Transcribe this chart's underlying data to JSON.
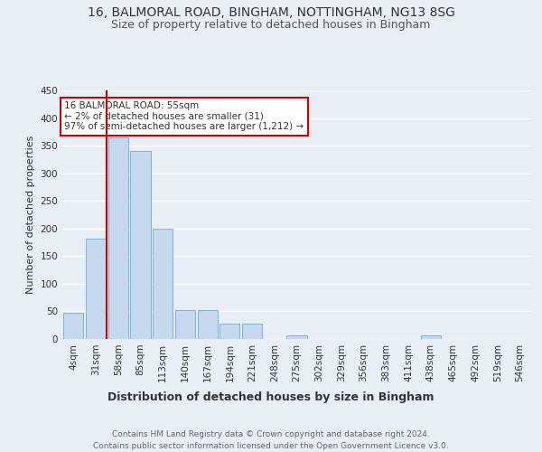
{
  "title1": "16, BALMORAL ROAD, BINGHAM, NOTTINGHAM, NG13 8SG",
  "title2": "Size of property relative to detached houses in Bingham",
  "xlabel": "Distribution of detached houses by size in Bingham",
  "ylabel": "Number of detached properties",
  "categories": [
    "4sqm",
    "31sqm",
    "58sqm",
    "85sqm",
    "113sqm",
    "140sqm",
    "167sqm",
    "194sqm",
    "221sqm",
    "248sqm",
    "275sqm",
    "302sqm",
    "329sqm",
    "356sqm",
    "383sqm",
    "411sqm",
    "438sqm",
    "465sqm",
    "492sqm",
    "519sqm",
    "546sqm"
  ],
  "values": [
    48,
    181,
    365,
    340,
    199,
    53,
    53,
    28,
    28,
    0,
    7,
    0,
    0,
    0,
    0,
    0,
    7,
    0,
    0,
    0,
    0
  ],
  "bar_color": "#c5d8ed",
  "bar_edge_color": "#6aaed6",
  "vline_color": "#cc0000",
  "vline_x_index": 1.5,
  "annotation_box_text": "16 BALMORAL ROAD: 55sqm\n← 2% of detached houses are smaller (31)\n97% of semi-detached houses are larger (1,212) →",
  "box_edge_color": "#cc0000",
  "ylim": [
    0,
    450
  ],
  "yticks": [
    0,
    50,
    100,
    150,
    200,
    250,
    300,
    350,
    400,
    450
  ],
  "footnote": "Contains HM Land Registry data © Crown copyright and database right 2024.\nContains public sector information licensed under the Open Government Licence v3.0.",
  "title1_fontsize": 10,
  "title2_fontsize": 9,
  "xlabel_fontsize": 9,
  "ylabel_fontsize": 8,
  "tick_fontsize": 7.5,
  "footnote_fontsize": 6.5,
  "bg_color": "#e8eef5",
  "plot_bg_color": "#e8eef5",
  "grid_color": "#ffffff"
}
